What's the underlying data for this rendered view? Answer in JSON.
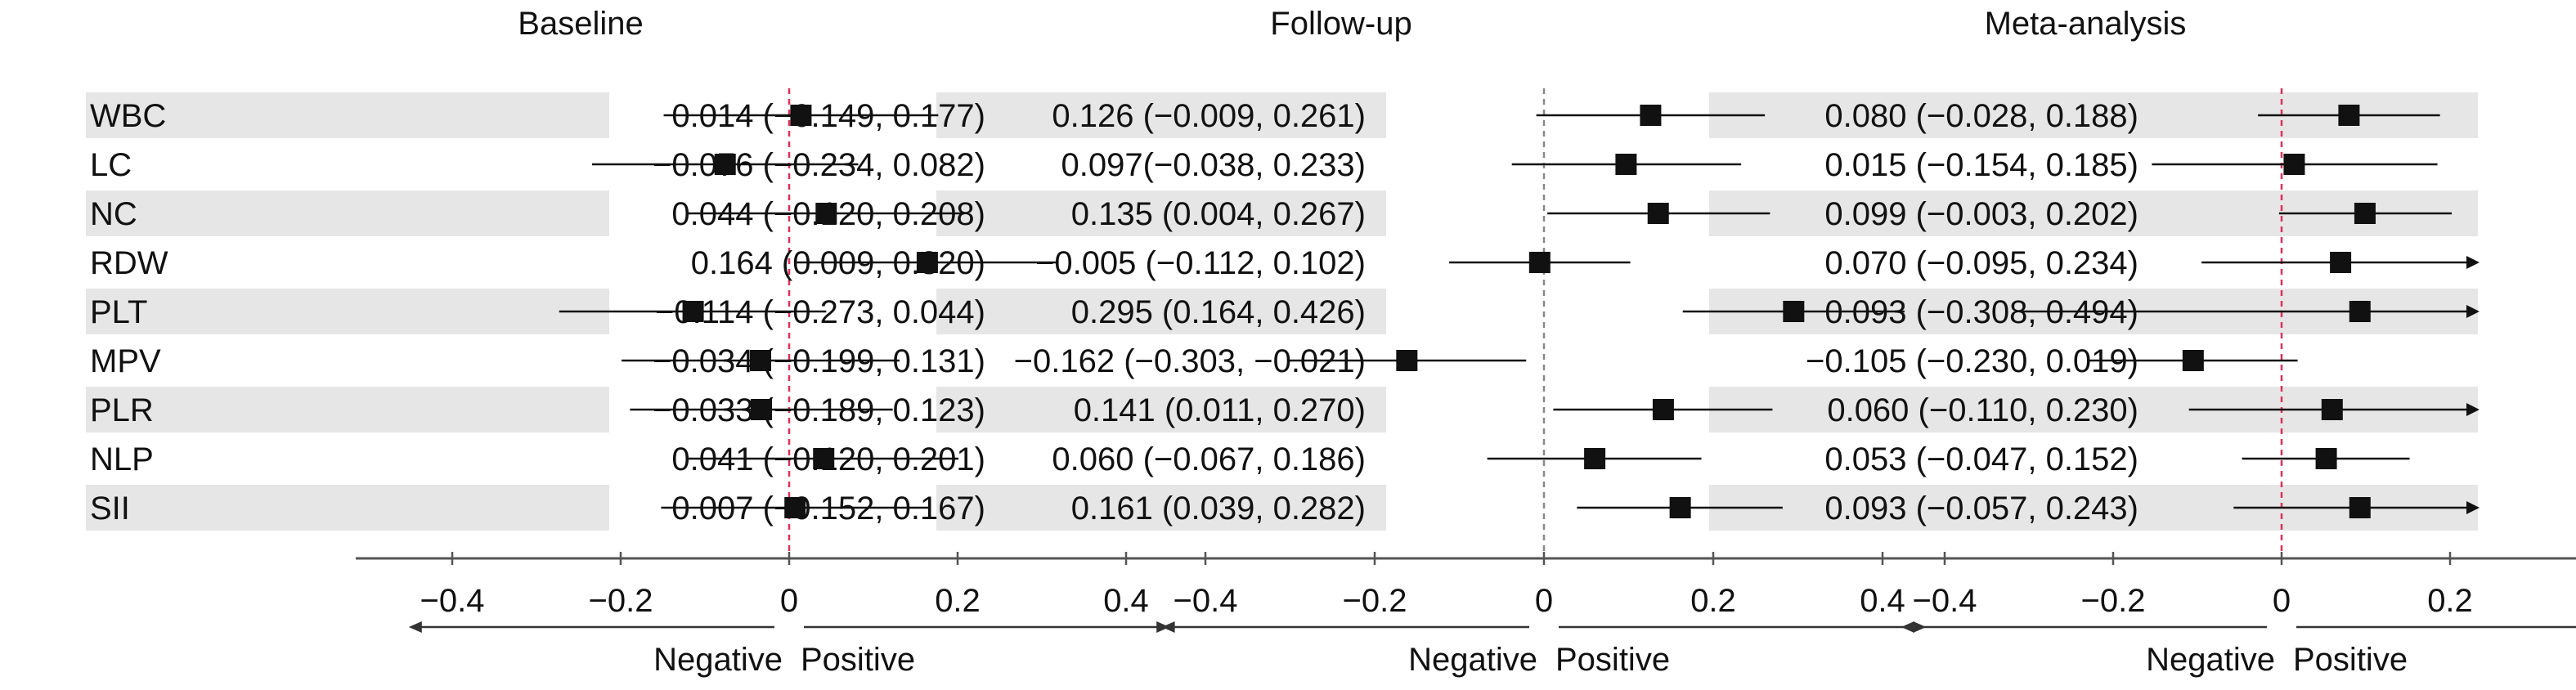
{
  "chart_data": {
    "type": "forest",
    "variables": [
      "WBC",
      "LC",
      "NC",
      "RDW",
      "PLT",
      "MPV",
      "PLR",
      "NLP",
      "SII"
    ],
    "panels": [
      {
        "title": "Baseline",
        "estimates": [
          {
            "label": "0.014 (−0.149, 0.177)",
            "est": 0.014,
            "lo": -0.149,
            "hi": 0.177
          },
          {
            "label": "−0.076 (−0.234, 0.082)",
            "est": -0.076,
            "lo": -0.234,
            "hi": 0.082
          },
          {
            "label": "0.044 (−0.120, 0.208)",
            "est": 0.044,
            "lo": -0.12,
            "hi": 0.208
          },
          {
            "label": "0.164 (0.009, 0.320)",
            "est": 0.164,
            "lo": 0.009,
            "hi": 0.32
          },
          {
            "label": "−0.114 (−0.273, 0.044)",
            "est": -0.114,
            "lo": -0.273,
            "hi": 0.044
          },
          {
            "label": "−0.034 (−0.199, 0.131)",
            "est": -0.034,
            "lo": -0.199,
            "hi": 0.131
          },
          {
            "label": "−0.033 (−0.189, 0.123)",
            "est": -0.033,
            "lo": -0.189,
            "hi": 0.123
          },
          {
            "label": "0.041 (−0.120, 0.201)",
            "est": 0.041,
            "lo": -0.12,
            "hi": 0.201
          },
          {
            "label": "0.007 (−0.152, 0.167)",
            "est": 0.007,
            "lo": -0.152,
            "hi": 0.167
          }
        ]
      },
      {
        "title": "Follow-up",
        "estimates": [
          {
            "label": "0.126 (−0.009, 0.261)",
            "est": 0.126,
            "lo": -0.009,
            "hi": 0.261
          },
          {
            "label": "0.097(−0.038, 0.233)",
            "est": 0.097,
            "lo": -0.038,
            "hi": 0.233
          },
          {
            "label": "0.135 (0.004, 0.267)",
            "est": 0.135,
            "lo": 0.004,
            "hi": 0.267
          },
          {
            "label": "−0.005 (−0.112, 0.102)",
            "est": -0.005,
            "lo": -0.112,
            "hi": 0.102
          },
          {
            "label": "0.295 (0.164, 0.426)",
            "est": 0.295,
            "lo": 0.164,
            "hi": 0.426
          },
          {
            "label": "−0.162 (−0.303, −0.021)",
            "est": -0.162,
            "lo": -0.303,
            "hi": -0.021
          },
          {
            "label": "0.141 (0.011, 0.270)",
            "est": 0.141,
            "lo": 0.011,
            "hi": 0.27
          },
          {
            "label": "0.060 (−0.067, 0.186)",
            "est": 0.06,
            "lo": -0.067,
            "hi": 0.186
          },
          {
            "label": "0.161 (0.039, 0.282)",
            "est": 0.161,
            "lo": 0.039,
            "hi": 0.282
          }
        ]
      },
      {
        "title": "Meta-analysis",
        "estimates": [
          {
            "label": "0.080 (−0.028, 0.188)",
            "est": 0.08,
            "lo": -0.028,
            "hi": 0.188
          },
          {
            "label": "0.015 (−0.154, 0.185)",
            "est": 0.015,
            "lo": -0.154,
            "hi": 0.185
          },
          {
            "label": "0.099 (−0.003, 0.202)",
            "est": 0.099,
            "lo": -0.003,
            "hi": 0.202
          },
          {
            "label": "0.070 (−0.095, 0.234)",
            "est": 0.07,
            "lo": -0.095,
            "hi": 0.234
          },
          {
            "label": "0.093 (−0.308, 0.494)",
            "est": 0.093,
            "lo": -0.308,
            "hi": 0.494
          },
          {
            "label": "−0.105 (−0.230, 0.019)",
            "est": -0.105,
            "lo": -0.23,
            "hi": 0.019
          },
          {
            "label": "0.060 (−0.110, 0.230)",
            "est": 0.06,
            "lo": -0.11,
            "hi": 0.23
          },
          {
            "label": "0.053 (−0.047, 0.152)",
            "est": 0.053,
            "lo": -0.047,
            "hi": 0.152
          },
          {
            "label": "0.093 (−0.057, 0.243)",
            "est": 0.093,
            "lo": -0.057,
            "hi": 0.243
          }
        ]
      }
    ],
    "xlim": [
      -0.5,
      0.5
    ],
    "xticks": [
      -0.4,
      -0.2,
      0,
      0.2,
      0.4
    ],
    "xtick_labels": [
      "−0.4",
      "−0.2",
      "0",
      "0.2",
      "0.4"
    ],
    "direction_labels": {
      "negative": "Negative",
      "positive": "Positive"
    },
    "reference_line_colors": [
      "#e0305a",
      "#888888",
      "#e0305a"
    ],
    "colors": {
      "row_band": "#e6e6e6",
      "marker": "#111111",
      "ci_line": "#111111"
    }
  }
}
